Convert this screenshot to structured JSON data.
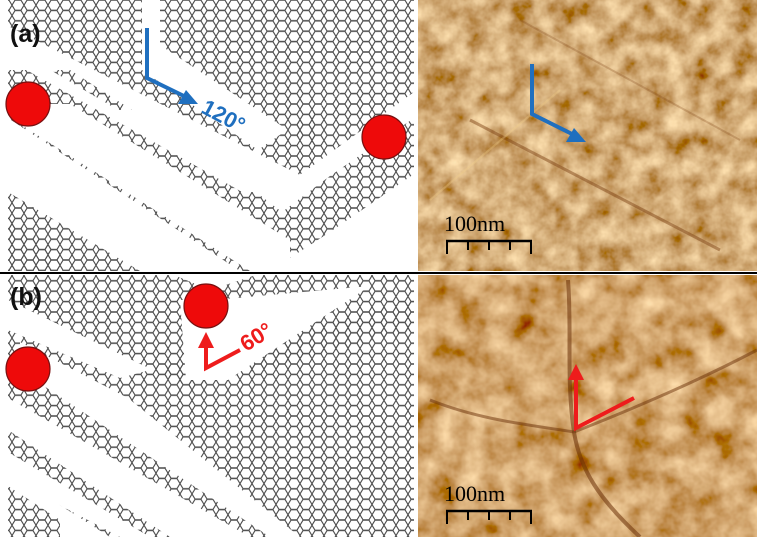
{
  "figure": {
    "panels": [
      {
        "label": "(a)",
        "angle": "120°",
        "arrow_color": "#1f6fbf",
        "scale_bar": "100nm"
      },
      {
        "label": "(b)",
        "angle": "60°",
        "arrow_color": "#ee1c1c",
        "scale_bar": "100nm"
      }
    ],
    "colors": {
      "lattice_stroke": "#4a4a4a",
      "atom_fill": "#ee0a0a",
      "afm_base": "#c8822f",
      "afm_light": "#f6d38c",
      "afm_dark": "#7a3e10",
      "divider": "#000000"
    }
  }
}
